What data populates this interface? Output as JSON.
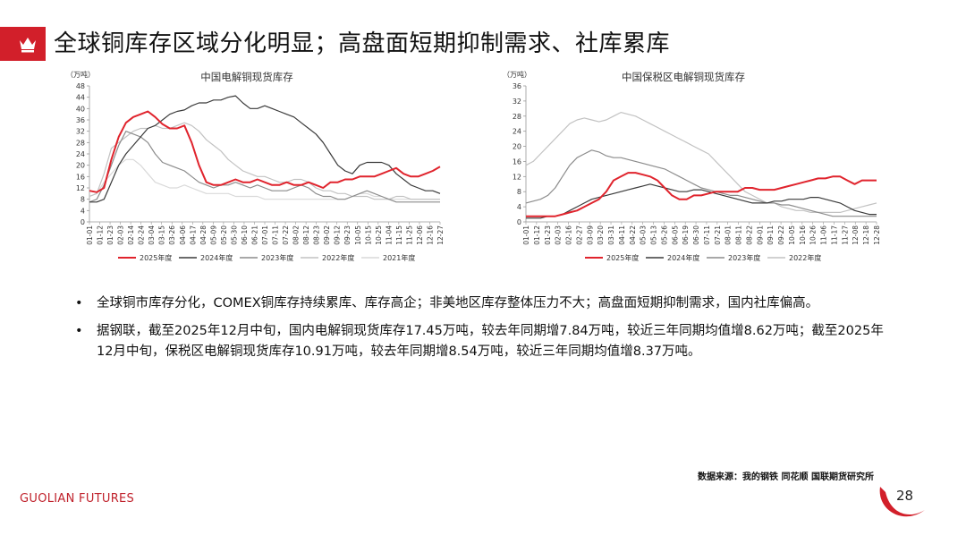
{
  "header": {
    "title": "全球铜库存区域分化明显；高盘面短期抑制需求、社库累库"
  },
  "colors": {
    "accent": "#d21f2a",
    "s2025": "#e0242d",
    "s2024": "#3a3a3a",
    "s2023": "#8c8c8c",
    "s2022": "#c2c2c2",
    "s2021": "#d9d9d9"
  },
  "chart_data": [
    {
      "type": "line",
      "title": "中国电解铜现货库存",
      "unit_label": "（万吨）",
      "ylim": [
        0,
        48
      ],
      "yticks": [
        0,
        4,
        8,
        12,
        16,
        20,
        24,
        28,
        32,
        36,
        40,
        44,
        48
      ],
      "xticks": [
        "01-01",
        "01-12",
        "01-23",
        "02-03",
        "02-14",
        "02-24",
        "03-04",
        "03-15",
        "03-26",
        "04-06",
        "04-17",
        "04-28",
        "05-09",
        "05-20",
        "05-30",
        "06-10",
        "06-21",
        "07-01",
        "07-11",
        "07-22",
        "08-02",
        "08-12",
        "08-23",
        "09-02",
        "09-12",
        "09-23",
        "10-05",
        "10-15",
        "10-25",
        "11-04",
        "11-15",
        "11-25",
        "12-06",
        "12-16",
        "12-27"
      ],
      "x_count": 49,
      "series": [
        {
          "name": "2025年度",
          "color_key": "s2025",
          "values": [
            11,
            10.5,
            12,
            22,
            30,
            35,
            37,
            38,
            39,
            37,
            34.5,
            33,
            33,
            34,
            28,
            20,
            14,
            13,
            13,
            14,
            15,
            14,
            14,
            15,
            14,
            13,
            13,
            14,
            13,
            13,
            14,
            13,
            12,
            14,
            14,
            15,
            15,
            16,
            16,
            16,
            17,
            18,
            19,
            17,
            16,
            16,
            17,
            18,
            19.5
          ]
        },
        {
          "name": "2024年度",
          "color_key": "s2024",
          "values": [
            7,
            7,
            8,
            14,
            20,
            24,
            27,
            30,
            33,
            34,
            36,
            38,
            39,
            39.5,
            41,
            42,
            42,
            43,
            43,
            44,
            44.5,
            42,
            40,
            40,
            41,
            40,
            39,
            38,
            37,
            35,
            33,
            31,
            28,
            24,
            20,
            18,
            17,
            20,
            21,
            21,
            21,
            20,
            17,
            15,
            13,
            12,
            11,
            11,
            10
          ]
        },
        {
          "name": "2023年度",
          "color_key": "s2023",
          "values": [
            7,
            8,
            13,
            20,
            27,
            32,
            31,
            30,
            28,
            24,
            21,
            20,
            19,
            18,
            16,
            14,
            13,
            12,
            13,
            13,
            14,
            13,
            12,
            13,
            12,
            11,
            11,
            11,
            12,
            13,
            12,
            10,
            9,
            9,
            8,
            8,
            9,
            10,
            11,
            10,
            9,
            8,
            7,
            7,
            7,
            7,
            7,
            7,
            7
          ]
        },
        {
          "name": "2022年度",
          "color_key": "s2022",
          "values": [
            9,
            10,
            17,
            26,
            28,
            30,
            32,
            33,
            33,
            34,
            33,
            33,
            34,
            35,
            34,
            32,
            29,
            27,
            25,
            22,
            20,
            18,
            17,
            16,
            16,
            15,
            14,
            14,
            15,
            15,
            14,
            12,
            11,
            11,
            10,
            10,
            9,
            9,
            9,
            8,
            8,
            8,
            9,
            9,
            8,
            8,
            8,
            8,
            8
          ]
        },
        {
          "name": "2021年度",
          "color_key": "s2021",
          "values": [
            9,
            10,
            14,
            17,
            20,
            22,
            22,
            20,
            17,
            14,
            13,
            12,
            12,
            13,
            12,
            11,
            10,
            10,
            10,
            10,
            9,
            9,
            9,
            9,
            8,
            8,
            8,
            8,
            8,
            8,
            8,
            8,
            8,
            8,
            8,
            8,
            9,
            10,
            10,
            9,
            9,
            8,
            8,
            8,
            8,
            8,
            8,
            8,
            8
          ]
        }
      ]
    },
    {
      "type": "line",
      "title": "中国保税区电解铜现货库存",
      "unit_label": "（万吨）",
      "ylim": [
        0,
        36
      ],
      "yticks": [
        0,
        4,
        8,
        12,
        16,
        20,
        24,
        28,
        32,
        36
      ],
      "xticks": [
        "01-01",
        "01-12",
        "01-23",
        "02-03",
        "02-16",
        "02-27",
        "03-09",
        "03-20",
        "03-31",
        "04-11",
        "04-22",
        "05-03",
        "05-13",
        "05-26",
        "06-05",
        "06-19",
        "06-30",
        "07-11",
        "07-21",
        "08-01",
        "08-11",
        "08-22",
        "09-01",
        "09-11",
        "09-22",
        "10-05",
        "10-16",
        "10-26",
        "11-06",
        "11-17",
        "11-27",
        "12-08",
        "12-18",
        "12-28"
      ],
      "x_count": 49,
      "series": [
        {
          "name": "2025年度",
          "color_key": "s2025",
          "values": [
            1.5,
            1.5,
            1.5,
            1.5,
            1.5,
            2,
            2.5,
            3,
            4,
            5,
            6,
            8,
            11,
            12,
            13,
            13,
            12.5,
            12,
            11,
            9,
            7,
            6,
            6,
            7,
            7,
            7.5,
            8,
            8,
            8,
            8,
            9,
            9,
            8.5,
            8.5,
            8.5,
            9,
            9.5,
            10,
            10.5,
            11,
            11.5,
            11.5,
            12,
            12,
            11,
            10,
            11,
            11,
            11
          ]
        },
        {
          "name": "2024年度",
          "color_key": "s2024",
          "values": [
            1,
            1,
            1,
            1.5,
            1.5,
            2,
            3,
            4,
            5,
            6,
            6.5,
            7,
            7.5,
            8,
            8.5,
            9,
            9.5,
            10,
            9.5,
            9,
            8.5,
            8,
            8,
            8.5,
            8.5,
            8,
            7.5,
            7,
            6.5,
            6,
            5.5,
            5,
            5,
            5,
            5.5,
            5.5,
            6,
            6,
            6,
            6.5,
            6.5,
            6,
            5.5,
            5,
            4,
            3,
            2.5,
            2,
            2
          ]
        },
        {
          "name": "2023年度",
          "color_key": "s2023",
          "values": [
            5,
            5.5,
            6,
            7,
            9,
            12,
            15,
            17,
            18,
            19,
            18.5,
            17.5,
            17,
            17,
            16.5,
            16,
            15.5,
            15,
            14.5,
            14,
            13,
            12,
            11,
            10,
            9,
            8.5,
            8,
            7.5,
            7,
            7,
            6.5,
            6,
            5.5,
            5,
            5,
            4.5,
            4.5,
            4,
            3.5,
            3,
            2.5,
            2,
            1.5,
            1.5,
            1.5,
            1.5,
            1.5,
            1.5,
            1.5
          ]
        },
        {
          "name": "2022年度",
          "color_key": "s2022",
          "values": [
            15,
            16,
            18,
            20,
            22,
            24,
            26,
            27,
            27.5,
            27,
            26.5,
            27,
            28,
            29,
            28.5,
            28,
            27,
            26,
            25,
            24,
            23,
            22,
            21,
            20,
            19,
            18,
            16,
            14,
            12,
            10,
            8,
            7,
            6,
            5,
            5,
            4,
            3.5,
            3,
            3,
            2.5,
            2.5,
            2.5,
            2.5,
            2.5,
            3,
            3.5,
            4,
            4.5,
            5
          ]
        }
      ]
    }
  ],
  "bullets": [
    "全球铜市库存分化，COMEX铜库存持续累库、库存高企；非美地区库存整体压力不大；高盘面短期抑制需求，国内社库偏高。",
    "据钢联，截至2025年12月中旬，国内电解铜现货库存17.45万吨，较去年同期增7.84万吨，较近三年同期均值增8.62万吨；截至2025年12月中旬，保税区电解铜现货库存10.91万吨，较去年同期增8.54万吨，较近三年同期均值增8.37万吨。"
  ],
  "bullet_marker": "•",
  "footer": {
    "source": "数据来源：我的钢铁  同花顺  国联期货研究所",
    "brand": "GUOLIAN FUTURES",
    "page_number": "28"
  }
}
